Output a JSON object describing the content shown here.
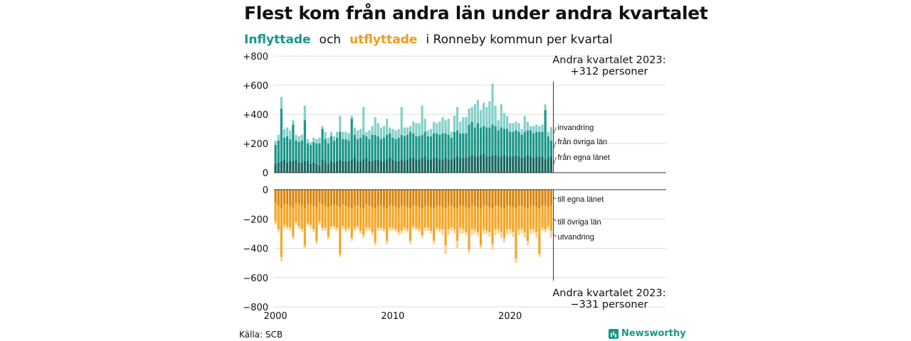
{
  "title": "Flest kom från andra län under andra kvartalet",
  "subtitle": {
    "in": "Inflyttade",
    "och": "och",
    "out": "utflyttade",
    "rest": "i Ronneby  kommun  per  kvartal"
  },
  "source": "Källa: SCB",
  "brand": "Newsworthy",
  "colors": {
    "in_egna": "#15675f",
    "in_ovriga": "#1a9688",
    "in_invandring": "#82d1c9",
    "out_egna": "#d9860f",
    "out_ovriga": "#f5a623",
    "out_utvandring": "#f9d49a"
  },
  "chart_data": {
    "type": "bar",
    "stacked": true,
    "x_start": "2000 Q1",
    "x_end": "2023 Q2",
    "x_ticks": [
      "2000",
      "2010",
      "2020"
    ],
    "upper": {
      "ylim": [
        0,
        800
      ],
      "y_ticks": [
        "0",
        "+200",
        "+400",
        "+600",
        "+800"
      ],
      "series_labels": [
        "invandring",
        "från övriga län",
        "från egna länet"
      ],
      "annotation_line1": "Andra kvartalet 2023:",
      "annotation_line2": "+312 personer",
      "series": [
        {
          "name": "från egna länet",
          "values": [
            60,
            70,
            80,
            90,
            70,
            80,
            80,
            90,
            70,
            70,
            80,
            80,
            60,
            70,
            60,
            50,
            90,
            80,
            60,
            80,
            70,
            80,
            90,
            80,
            80,
            80,
            90,
            100,
            80,
            80,
            90,
            100,
            80,
            80,
            90,
            90,
            80,
            80,
            90,
            100,
            90,
            80,
            80,
            90,
            80,
            90,
            100,
            100,
            90,
            90,
            100,
            110,
            90,
            90,
            100,
            100,
            90,
            90,
            100,
            90,
            90,
            100,
            110,
            100,
            100,
            100,
            110,
            120,
            110,
            110,
            120,
            130,
            110,
            110,
            120,
            120,
            110,
            110,
            120,
            110,
            110,
            110,
            120,
            110,
            100,
            110,
            120,
            110,
            100,
            110,
            110,
            110,
            90,
            100,
            110
          ]
        },
        {
          "name": "från övriga län",
          "values": [
            130,
            150,
            360,
            150,
            180,
            150,
            250,
            130,
            140,
            150,
            280,
            120,
            130,
            140,
            140,
            150,
            210,
            150,
            140,
            170,
            150,
            160,
            190,
            150,
            150,
            140,
            280,
            160,
            150,
            160,
            170,
            150,
            150,
            180,
            170,
            160,
            150,
            160,
            170,
            170,
            150,
            150,
            160,
            170,
            170,
            170,
            180,
            170,
            160,
            160,
            160,
            170,
            160,
            160,
            170,
            170,
            170,
            180,
            170,
            170,
            150,
            180,
            180,
            170,
            170,
            170,
            220,
            230,
            200,
            230,
            190,
            190,
            200,
            200,
            210,
            200,
            180,
            200,
            180,
            190,
            170,
            170,
            170,
            170,
            160,
            170,
            170,
            180,
            170,
            170,
            170,
            170,
            340,
            150,
            110
          ]
        },
        {
          "name": "invandring",
          "values": [
            30,
            40,
            80,
            60,
            60,
            60,
            30,
            40,
            40,
            40,
            100,
            30,
            20,
            30,
            30,
            40,
            20,
            50,
            40,
            30,
            30,
            40,
            110,
            50,
            50,
            50,
            20,
            50,
            60,
            60,
            190,
            30,
            60,
            60,
            120,
            90,
            80,
            80,
            110,
            40,
            60,
            60,
            60,
            190,
            60,
            50,
            40,
            80,
            90,
            90,
            200,
            90,
            40,
            50,
            80,
            70,
            90,
            110,
            90,
            110,
            40,
            110,
            160,
            80,
            110,
            110,
            110,
            100,
            160,
            160,
            120,
            160,
            140,
            180,
            280,
            140,
            70,
            160,
            110,
            90,
            60,
            60,
            60,
            60,
            40,
            110,
            60,
            30,
            50,
            50,
            40,
            50,
            40,
            30,
            92
          ]
        }
      ]
    },
    "lower": {
      "ylim": [
        -800,
        0
      ],
      "y_ticks": [
        "0",
        "−200",
        "−400",
        "−600",
        "−800"
      ],
      "series_labels": [
        "till egna länet",
        "till övriga län",
        "utvandring"
      ],
      "annotation_line1": "Andra kvartalet 2023:",
      "annotation_line2": "−331 personer",
      "series": [
        {
          "name": "till egna länet",
          "values": [
            -90,
            -110,
            -130,
            -100,
            -100,
            -110,
            -120,
            -90,
            -100,
            -110,
            -130,
            -100,
            -100,
            -110,
            -120,
            -90,
            -100,
            -110,
            -120,
            -110,
            -100,
            -110,
            -120,
            -100,
            -110,
            -120,
            -130,
            -110,
            -110,
            -120,
            -130,
            -100,
            -110,
            -120,
            -130,
            -110,
            -110,
            -120,
            -130,
            -110,
            -110,
            -120,
            -130,
            -110,
            -110,
            -120,
            -130,
            -110,
            -110,
            -120,
            -130,
            -110,
            -110,
            -120,
            -130,
            -110,
            -110,
            -120,
            -130,
            -110,
            -110,
            -120,
            -130,
            -110,
            -110,
            -120,
            -130,
            -110,
            -110,
            -120,
            -130,
            -110,
            -110,
            -120,
            -130,
            -110,
            -110,
            -120,
            -130,
            -110,
            -110,
            -120,
            -130,
            -110,
            -110,
            -120,
            -130,
            -110,
            -110,
            -120,
            -130,
            -110,
            -110,
            -120,
            -110
          ]
        },
        {
          "name": "till övriga län",
          "values": [
            -130,
            -160,
            -330,
            -140,
            -150,
            -150,
            -200,
            -130,
            -150,
            -160,
            -250,
            -130,
            -140,
            -160,
            -230,
            -130,
            -160,
            -150,
            -200,
            -140,
            -150,
            -150,
            -320,
            -150,
            -160,
            -140,
            -200,
            -150,
            -140,
            -160,
            -180,
            -160,
            -150,
            -170,
            -230,
            -150,
            -150,
            -150,
            -220,
            -150,
            -150,
            -150,
            -160,
            -170,
            -150,
            -150,
            -220,
            -140,
            -150,
            -150,
            -180,
            -150,
            -150,
            -160,
            -220,
            -150,
            -160,
            -150,
            -250,
            -160,
            -150,
            -150,
            -220,
            -150,
            -160,
            -170,
            -280,
            -160,
            -160,
            -170,
            -250,
            -160,
            -170,
            -170,
            -240,
            -160,
            -160,
            -170,
            -200,
            -160,
            -160,
            -170,
            -340,
            -160,
            -160,
            -170,
            -220,
            -160,
            -160,
            -170,
            -310,
            -150,
            -160,
            -130,
            -170
          ]
        },
        {
          "name": "utvandring",
          "values": [
            -20,
            -20,
            -30,
            -20,
            -20,
            -20,
            -20,
            -20,
            -20,
            -20,
            -20,
            -20,
            -20,
            -20,
            -20,
            -20,
            -20,
            -20,
            -20,
            -20,
            -20,
            -20,
            -20,
            -20,
            -20,
            -20,
            -20,
            -20,
            -20,
            -20,
            -20,
            -20,
            -20,
            -20,
            -20,
            -20,
            -20,
            -20,
            -20,
            -20,
            -20,
            -20,
            -20,
            -20,
            -20,
            -20,
            -20,
            -20,
            -20,
            -20,
            -20,
            -20,
            -20,
            -20,
            -20,
            -20,
            -20,
            -40,
            -60,
            -40,
            -20,
            -30,
            -50,
            -40,
            -30,
            -20,
            -20,
            -40,
            -30,
            -30,
            -20,
            -30,
            -20,
            -30,
            -40,
            -40,
            -30,
            -40,
            -30,
            -40,
            -30,
            -30,
            -30,
            -40,
            -30,
            -40,
            -30,
            -30,
            -30,
            -40,
            -20,
            -20,
            -20,
            -20,
            -51
          ]
        }
      ]
    }
  }
}
